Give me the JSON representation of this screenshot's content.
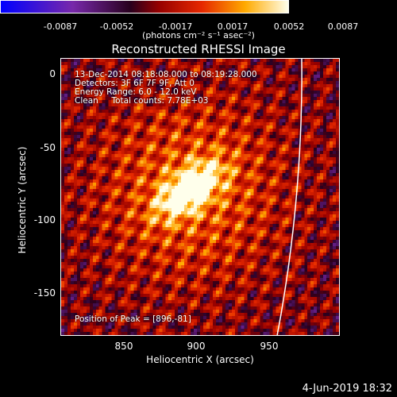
{
  "colorbar": {
    "ticks": [
      "-0.0087",
      "-0.0052",
      "-0.0017",
      "0.0017",
      "0.0052",
      "0.0087"
    ],
    "units": "(photons cm⁻² s⁻¹ asec⁻²)"
  },
  "title": "Reconstructed RHESSI Image",
  "info": {
    "time_range": "13-Dec-2014 08:18:08.000 to 08:19:28.000",
    "detectors": "Detectors: 3F 6F 7F 9F, Att 0",
    "energy": "Energy Range: 6.0 - 12.0 keV",
    "clean": "Clean     Total counts: 7.78E+03",
    "peak": "Position of Peak = [896,-81]"
  },
  "axes": {
    "xlabel": "Heliocentric X (arcsec)",
    "ylabel": "Heliocentric Y (arcsec)",
    "xticks": [
      "850",
      "900",
      "950"
    ],
    "yticks": [
      "0",
      "-50",
      "-100",
      "-150"
    ]
  },
  "footer": {
    "date": "4-Jun-2019 18:32"
  },
  "chart_data": {
    "type": "heatmap",
    "title": "Reconstructed RHESSI Image",
    "xlabel": "Heliocentric X (arcsec)",
    "ylabel": "Heliocentric Y (arcsec)",
    "xlim": [
      806,
      1000
    ],
    "ylim": [
      -182,
      10
    ],
    "colorbar_range": [
      -0.0087,
      0.0087
    ],
    "colormap": "blue-purple-red-yellow-white",
    "peak": [
      896,
      -81
    ],
    "limb_color": "#ffffff"
  }
}
